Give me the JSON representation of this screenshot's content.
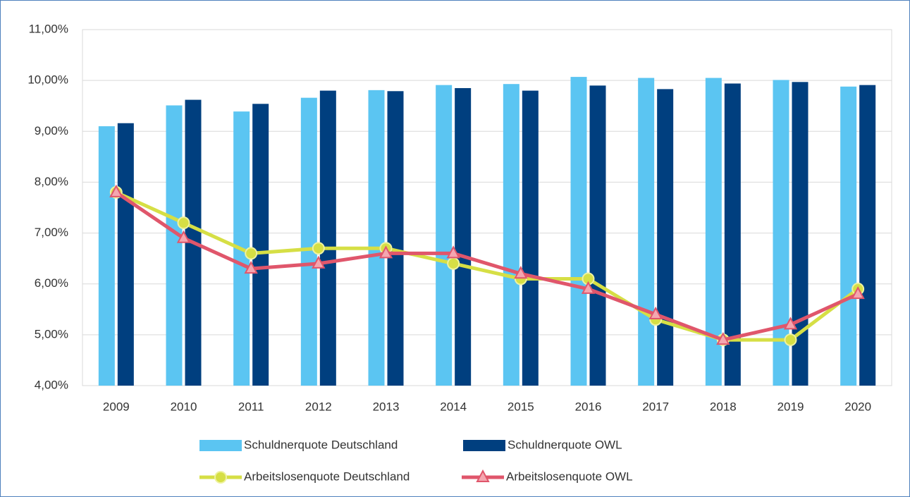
{
  "chart_data": {
    "type": "bar",
    "categories": [
      "2009",
      "2010",
      "2011",
      "2012",
      "2013",
      "2014",
      "2015",
      "2016",
      "2017",
      "2018",
      "2019",
      "2020"
    ],
    "series": [
      {
        "name": "Schuldnerquote Deutschland",
        "type": "bar",
        "color": "#5bc5f2",
        "values": [
          9.1,
          9.51,
          9.39,
          9.66,
          9.81,
          9.91,
          9.93,
          10.07,
          10.05,
          10.05,
          10.01,
          9.88
        ]
      },
      {
        "name": "Schuldnerquote OWL",
        "type": "bar",
        "color": "#003f7f",
        "values": [
          9.16,
          9.62,
          9.54,
          9.8,
          9.79,
          9.85,
          9.8,
          9.9,
          9.83,
          9.94,
          9.97,
          9.91
        ]
      },
      {
        "name": "Arbeitslosenquote Deutschland",
        "type": "line",
        "marker": "circle",
        "color": "#d6df45",
        "values": [
          7.8,
          7.2,
          6.6,
          6.7,
          6.7,
          6.4,
          6.1,
          6.1,
          5.3,
          4.9,
          4.9,
          5.9
        ]
      },
      {
        "name": "Arbeitslosenquote OWL",
        "type": "line",
        "marker": "triangle",
        "color": "#e0566b",
        "values": [
          7.8,
          6.9,
          6.3,
          6.4,
          6.6,
          6.6,
          6.2,
          5.9,
          5.4,
          4.9,
          5.2,
          5.8
        ]
      }
    ],
    "ylim": [
      4,
      11
    ],
    "yticks": [
      {
        "value": 4,
        "label": "4,00%"
      },
      {
        "value": 5,
        "label": "5,00%"
      },
      {
        "value": 6,
        "label": "6,00%"
      },
      {
        "value": 7,
        "label": "7,00%"
      },
      {
        "value": 8,
        "label": "8,00%"
      },
      {
        "value": 9,
        "label": "9,00%"
      },
      {
        "value": 10,
        "label": "10,00%"
      },
      {
        "value": 11,
        "label": "11,00%"
      }
    ],
    "grid": true,
    "legend": "bottom"
  }
}
